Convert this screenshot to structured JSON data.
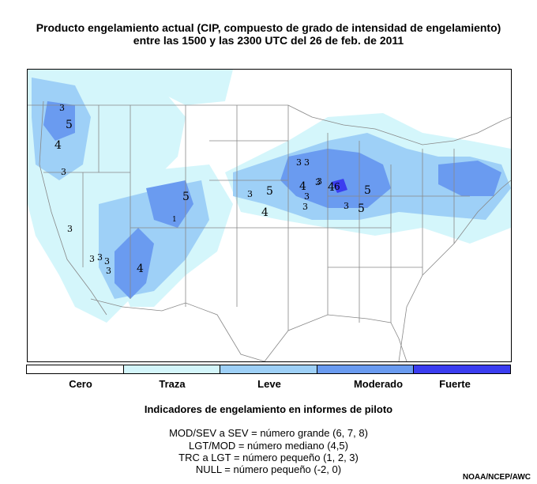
{
  "title": {
    "line1": "Producto engelamiento actual (CIP, compuesto de grado de intensidad de engelamiento)",
    "line2": "entre las 1500 y las 2300 UTC del 26 de feb. de 2011"
  },
  "legend": {
    "items": [
      {
        "label": "Cero",
        "color": "#ffffff"
      },
      {
        "label": "Traza",
        "color": "#d4f6fb"
      },
      {
        "label": "Leve",
        "color": "#9ed0f7"
      },
      {
        "label": "Moderado",
        "color": "#6a9bf0"
      },
      {
        "label": "Fuerte",
        "color": "#3b3df0"
      }
    ]
  },
  "pirep": {
    "heading": "Indicadores de engelamiento en informes de piloto",
    "lines": [
      "MOD/SEV a SEV = número grande (6, 7, 8)",
      "LGT/MOD = número mediano (4,5)",
      "TRC a LGT = número pequeño (1, 2, 3)",
      "NULL = número pequeño (-2, 0)"
    ]
  },
  "credit": "NOAA/NCEP/AWC",
  "map_markers": [
    "3",
    "5",
    "4",
    "3",
    "3",
    "5",
    "1",
    "3",
    "3",
    "3",
    "3",
    "3",
    "4",
    "3",
    "3",
    "5",
    "4",
    "3",
    "3",
    "4",
    "3",
    "3",
    "4",
    "6",
    "5",
    "3",
    "5"
  ]
}
